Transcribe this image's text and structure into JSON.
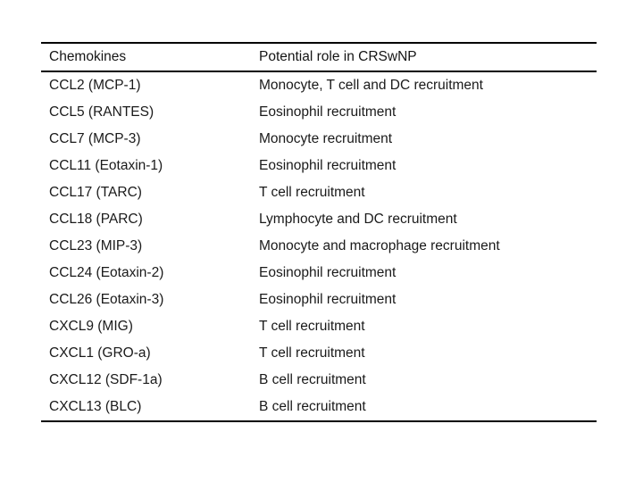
{
  "slide": {
    "background_color": "#ffffff",
    "line_color": "#000000",
    "text_color": "#1a1a1a"
  },
  "table": {
    "columns": [
      {
        "label": "Chemokines"
      },
      {
        "label": "Potential role in CRSwNP"
      }
    ],
    "rows": [
      {
        "chemokine": "CCL2 (MCP-1)",
        "role": "Monocyte, T cell and DC recruitment"
      },
      {
        "chemokine": "CCL5 (RANTES)",
        "role": "Eosinophil recruitment"
      },
      {
        "chemokine": "CCL7 (MCP-3)",
        "role": "Monocyte recruitment"
      },
      {
        "chemokine": "CCL11 (Eotaxin-1)",
        "role": "Eosinophil recruitment"
      },
      {
        "chemokine": "CCL17 (TARC)",
        "role": "T cell recruitment"
      },
      {
        "chemokine": "CCL18 (PARC)",
        "role": "Lymphocyte and DC recruitment"
      },
      {
        "chemokine": "CCL23 (MIP-3)",
        "role": "Monocyte and macrophage recruitment"
      },
      {
        "chemokine": "CCL24 (Eotaxin-2)",
        "role": "Eosinophil recruitment"
      },
      {
        "chemokine": "CCL26 (Eotaxin-3)",
        "role": "Eosinophil recruitment"
      },
      {
        "chemokine": "CXCL9 (MIG)",
        "role": "T cell recruitment"
      },
      {
        "chemokine": "CXCL1 (GRO-a)",
        "role": "T cell recruitment"
      },
      {
        "chemokine": "CXCL12 (SDF-1a)",
        "role": "B cell recruitment"
      },
      {
        "chemokine": "CXCL13 (BLC)",
        "role": "B cell recruitment"
      }
    ]
  }
}
